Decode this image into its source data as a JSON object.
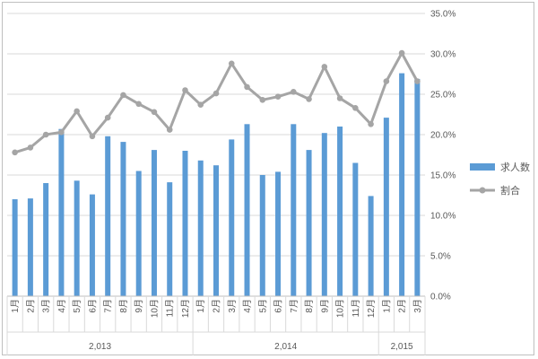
{
  "chart_data": {
    "type": "bar+line",
    "title": "",
    "xlabel": "",
    "ylabel": "",
    "categories": [
      "1月",
      "2月",
      "3月",
      "4月",
      "5月",
      "6月",
      "7月",
      "8月",
      "9月",
      "10月",
      "11月",
      "12月",
      "1月",
      "2月",
      "3月",
      "4月",
      "5月",
      "6月",
      "7月",
      "8月",
      "9月",
      "10月",
      "11月",
      "12月",
      "1月",
      "2月",
      "3月"
    ],
    "groups": [
      {
        "label": "2,013",
        "count": 12
      },
      {
        "label": "2,014",
        "count": 12
      },
      {
        "label": "2,015",
        "count": 3
      }
    ],
    "series": [
      {
        "name": "求人数",
        "type": "bar",
        "color": "#5b9bd5",
        "values": [
          12.0,
          12.1,
          14.0,
          20.7,
          14.3,
          12.6,
          19.8,
          19.1,
          15.5,
          18.1,
          14.1,
          18.0,
          16.8,
          16.2,
          19.4,
          21.3,
          15.0,
          15.4,
          21.3,
          18.1,
          20.2,
          21.0,
          16.5,
          12.4,
          22.1,
          27.6,
          26.9
        ]
      },
      {
        "name": "割合",
        "type": "line",
        "color": "#a5a5a5",
        "values": [
          17.8,
          18.4,
          20.0,
          20.3,
          22.9,
          19.8,
          22.1,
          24.9,
          23.8,
          22.8,
          20.6,
          25.5,
          23.7,
          25.1,
          28.8,
          25.9,
          24.3,
          24.7,
          25.3,
          24.4,
          28.4,
          24.5,
          23.3,
          21.3,
          26.6,
          30.1,
          26.6
        ]
      }
    ],
    "y_axis": {
      "position": "right",
      "min": 0,
      "max": 35,
      "step": 5,
      "tick_labels": [
        "0.0%",
        "5.0%",
        "10.0%",
        "15.0%",
        "20.0%",
        "25.0%",
        "30.0%",
        "35.0%"
      ]
    },
    "grid": true,
    "legend": "right"
  }
}
